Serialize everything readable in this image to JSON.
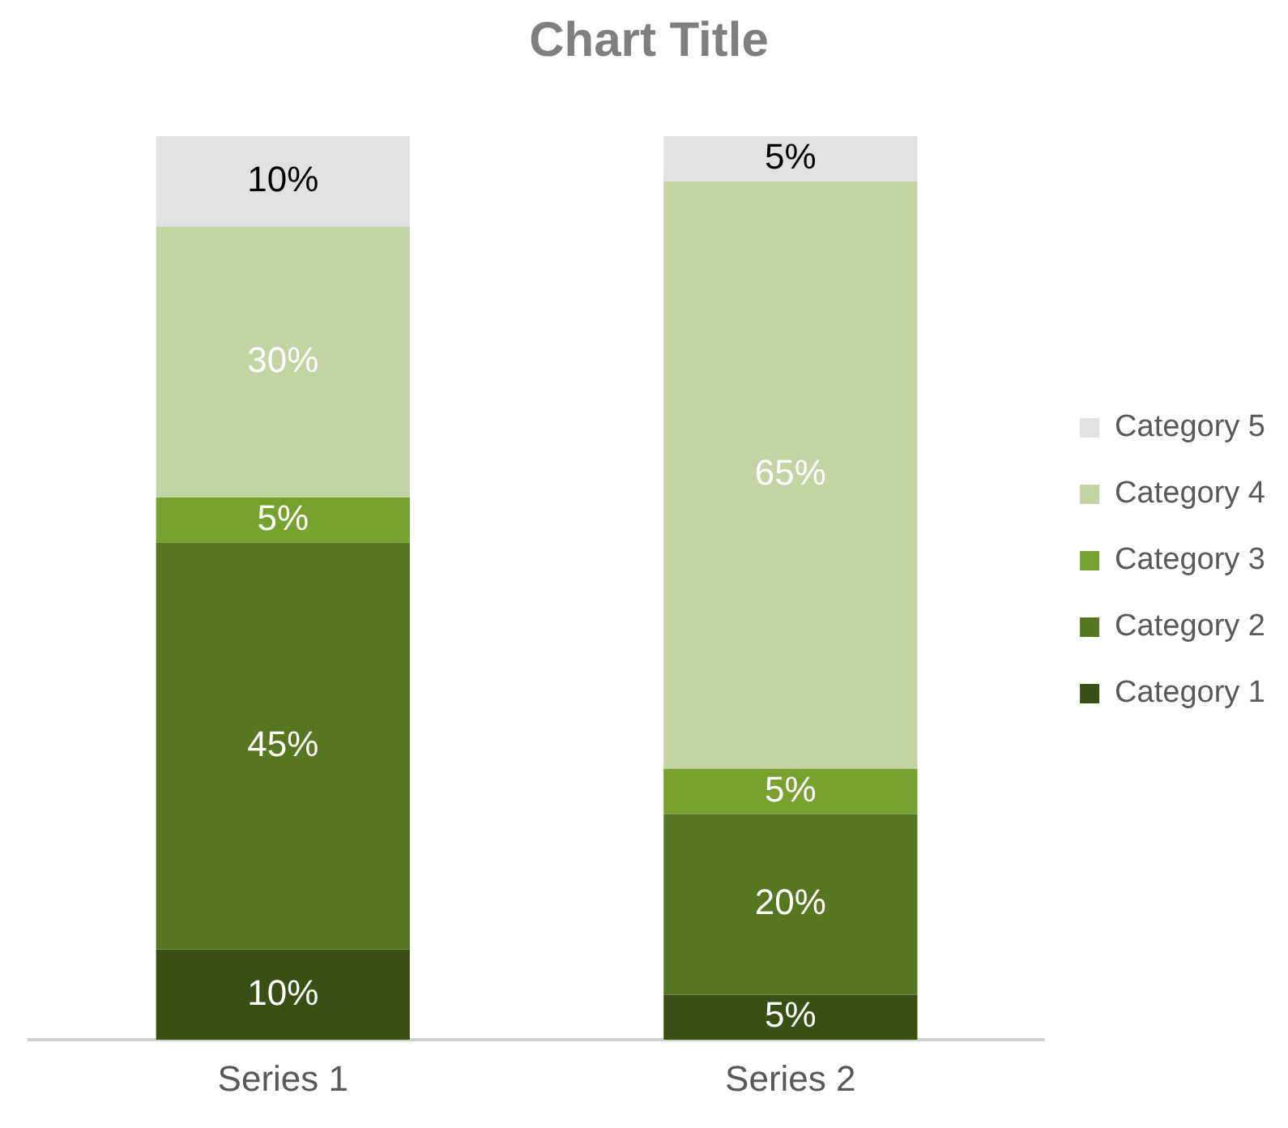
{
  "chart_data": {
    "type": "bar",
    "title": "Chart Title",
    "stacked": true,
    "categories": [
      "Series 1",
      "Series 2"
    ],
    "ylim": [
      0,
      100
    ],
    "tick_labels": "x",
    "legend": "right",
    "grid": false,
    "series": [
      {
        "name": "Category 1",
        "color": "#3b4f14",
        "values": [
          10,
          5
        ],
        "value_labels": [
          "10%",
          "5%"
        ]
      },
      {
        "name": "Category 2",
        "color": "#56761f",
        "values": [
          45,
          20
        ],
        "value_labels": [
          "45%",
          "20%"
        ]
      },
      {
        "name": "Category 3",
        "color": "#78a22f",
        "values": [
          5,
          5
        ],
        "value_labels": [
          "5%",
          "5%"
        ]
      },
      {
        "name": "Category 4",
        "color": "#c3d3a2",
        "values": [
          30,
          65
        ],
        "value_labels": [
          "30%",
          "65%"
        ]
      },
      {
        "name": "Category 5",
        "color": "#e0e1e3",
        "values": [
          10,
          5
        ],
        "value_labels": [
          "10%",
          "5%"
        ]
      }
    ]
  }
}
